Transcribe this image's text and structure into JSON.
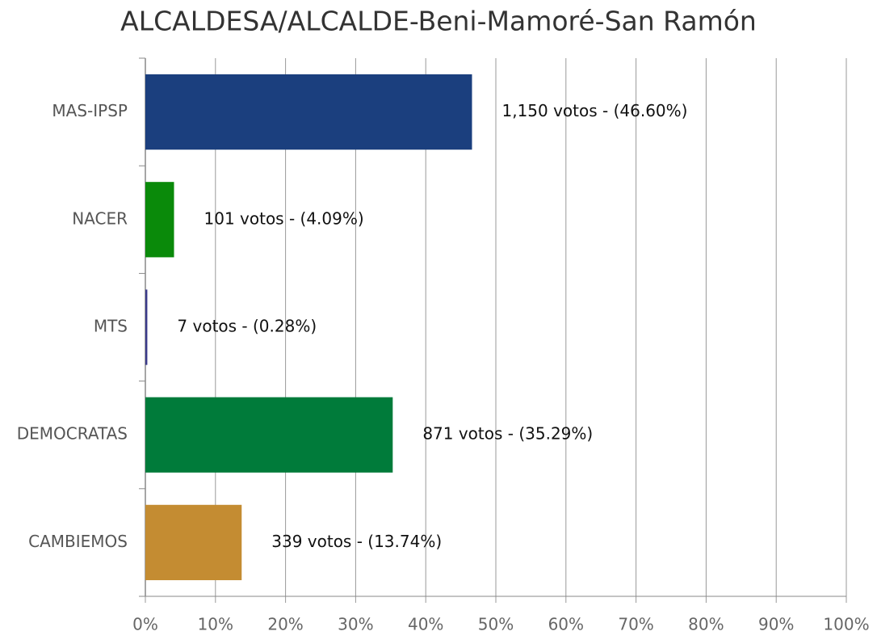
{
  "chart_data": {
    "type": "bar",
    "orientation": "horizontal",
    "title": "ALCALDESA/ALCALDE-Beni-Mamoré-San Ramón",
    "categories": [
      "MAS-IPSP",
      "NACER",
      "MTS",
      "DEMOCRATAS",
      "CAMBIEMOS"
    ],
    "values": [
      46.6,
      4.09,
      0.28,
      35.29,
      13.74
    ],
    "value_labels": [
      "1,150 votos - (46.60%)",
      "101 votos - (4.09%)",
      "7 votos - (0.28%)",
      "871 votos - (35.29%)",
      "339 votos - (13.74%)"
    ],
    "colors": [
      "#1b3f7e",
      "#0a8a0a",
      "#3a3a8a",
      "#007b3a",
      "#c48c32"
    ],
    "xlim": [
      0,
      100
    ],
    "xticks": [
      {
        "value": 0,
        "label": "0%"
      },
      {
        "value": 10,
        "label": "10%"
      },
      {
        "value": 20,
        "label": "20%"
      },
      {
        "value": 30,
        "label": "30%"
      },
      {
        "value": 40,
        "label": "40%"
      },
      {
        "value": 50,
        "label": "50%"
      },
      {
        "value": 60,
        "label": "60%"
      },
      {
        "value": 70,
        "label": "70%"
      },
      {
        "value": 80,
        "label": "80%"
      },
      {
        "value": 90,
        "label": "90%"
      },
      {
        "value": 100,
        "label": "100%"
      }
    ],
    "grid": true
  }
}
